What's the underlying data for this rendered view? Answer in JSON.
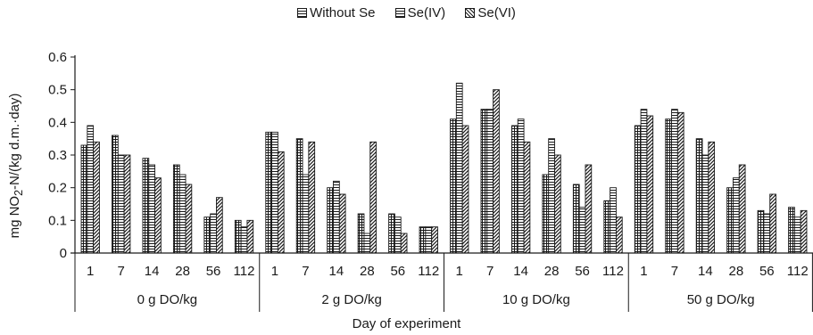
{
  "chart_data": {
    "type": "bar",
    "legend": [
      "Without Se",
      "Se(IV)",
      "Se(VI)"
    ],
    "legend_placement": "top-center",
    "ylabel": "mg NO2-N/(kg d.m.·day)",
    "ylabel_parts": [
      "mg NO",
      "2",
      "-N/(kg d.m.·day)"
    ],
    "xlabel": "Day of experiment",
    "ylim": [
      0,
      0.6
    ],
    "yticks": [
      "0",
      "0.1",
      "0.2",
      "0.3",
      "0.4",
      "0.5",
      "0.6"
    ],
    "grid": false,
    "days": [
      "1",
      "7",
      "14",
      "28",
      "56",
      "112"
    ],
    "groups": [
      "0 g DO/kg",
      "2 g DO/kg",
      "10 g DO/kg",
      "50 g DO/kg"
    ],
    "series": [
      {
        "name": "Without Se",
        "values": [
          [
            0.33,
            0.36,
            0.29,
            0.27,
            0.11,
            0.1
          ],
          [
            0.37,
            0.35,
            0.2,
            0.12,
            0.12,
            0.08
          ],
          [
            0.41,
            0.44,
            0.39,
            0.24,
            0.21,
            0.16
          ],
          [
            0.39,
            0.41,
            0.35,
            0.2,
            0.13,
            0.14
          ]
        ]
      },
      {
        "name": "Se(IV)",
        "values": [
          [
            0.39,
            0.3,
            0.27,
            0.24,
            0.12,
            0.08
          ],
          [
            0.37,
            0.24,
            0.22,
            0.06,
            0.11,
            0.08
          ],
          [
            0.52,
            0.44,
            0.41,
            0.35,
            0.14,
            0.2
          ],
          [
            0.44,
            0.44,
            0.3,
            0.23,
            0.12,
            0.11
          ]
        ]
      },
      {
        "name": "Se(VI)",
        "values": [
          [
            0.34,
            0.3,
            0.23,
            0.21,
            0.17,
            0.1
          ],
          [
            0.31,
            0.34,
            0.18,
            0.34,
            0.06,
            0.08
          ],
          [
            0.39,
            0.5,
            0.34,
            0.3,
            0.27,
            0.11
          ],
          [
            0.42,
            0.43,
            0.34,
            0.27,
            0.18,
            0.13
          ]
        ]
      }
    ]
  }
}
